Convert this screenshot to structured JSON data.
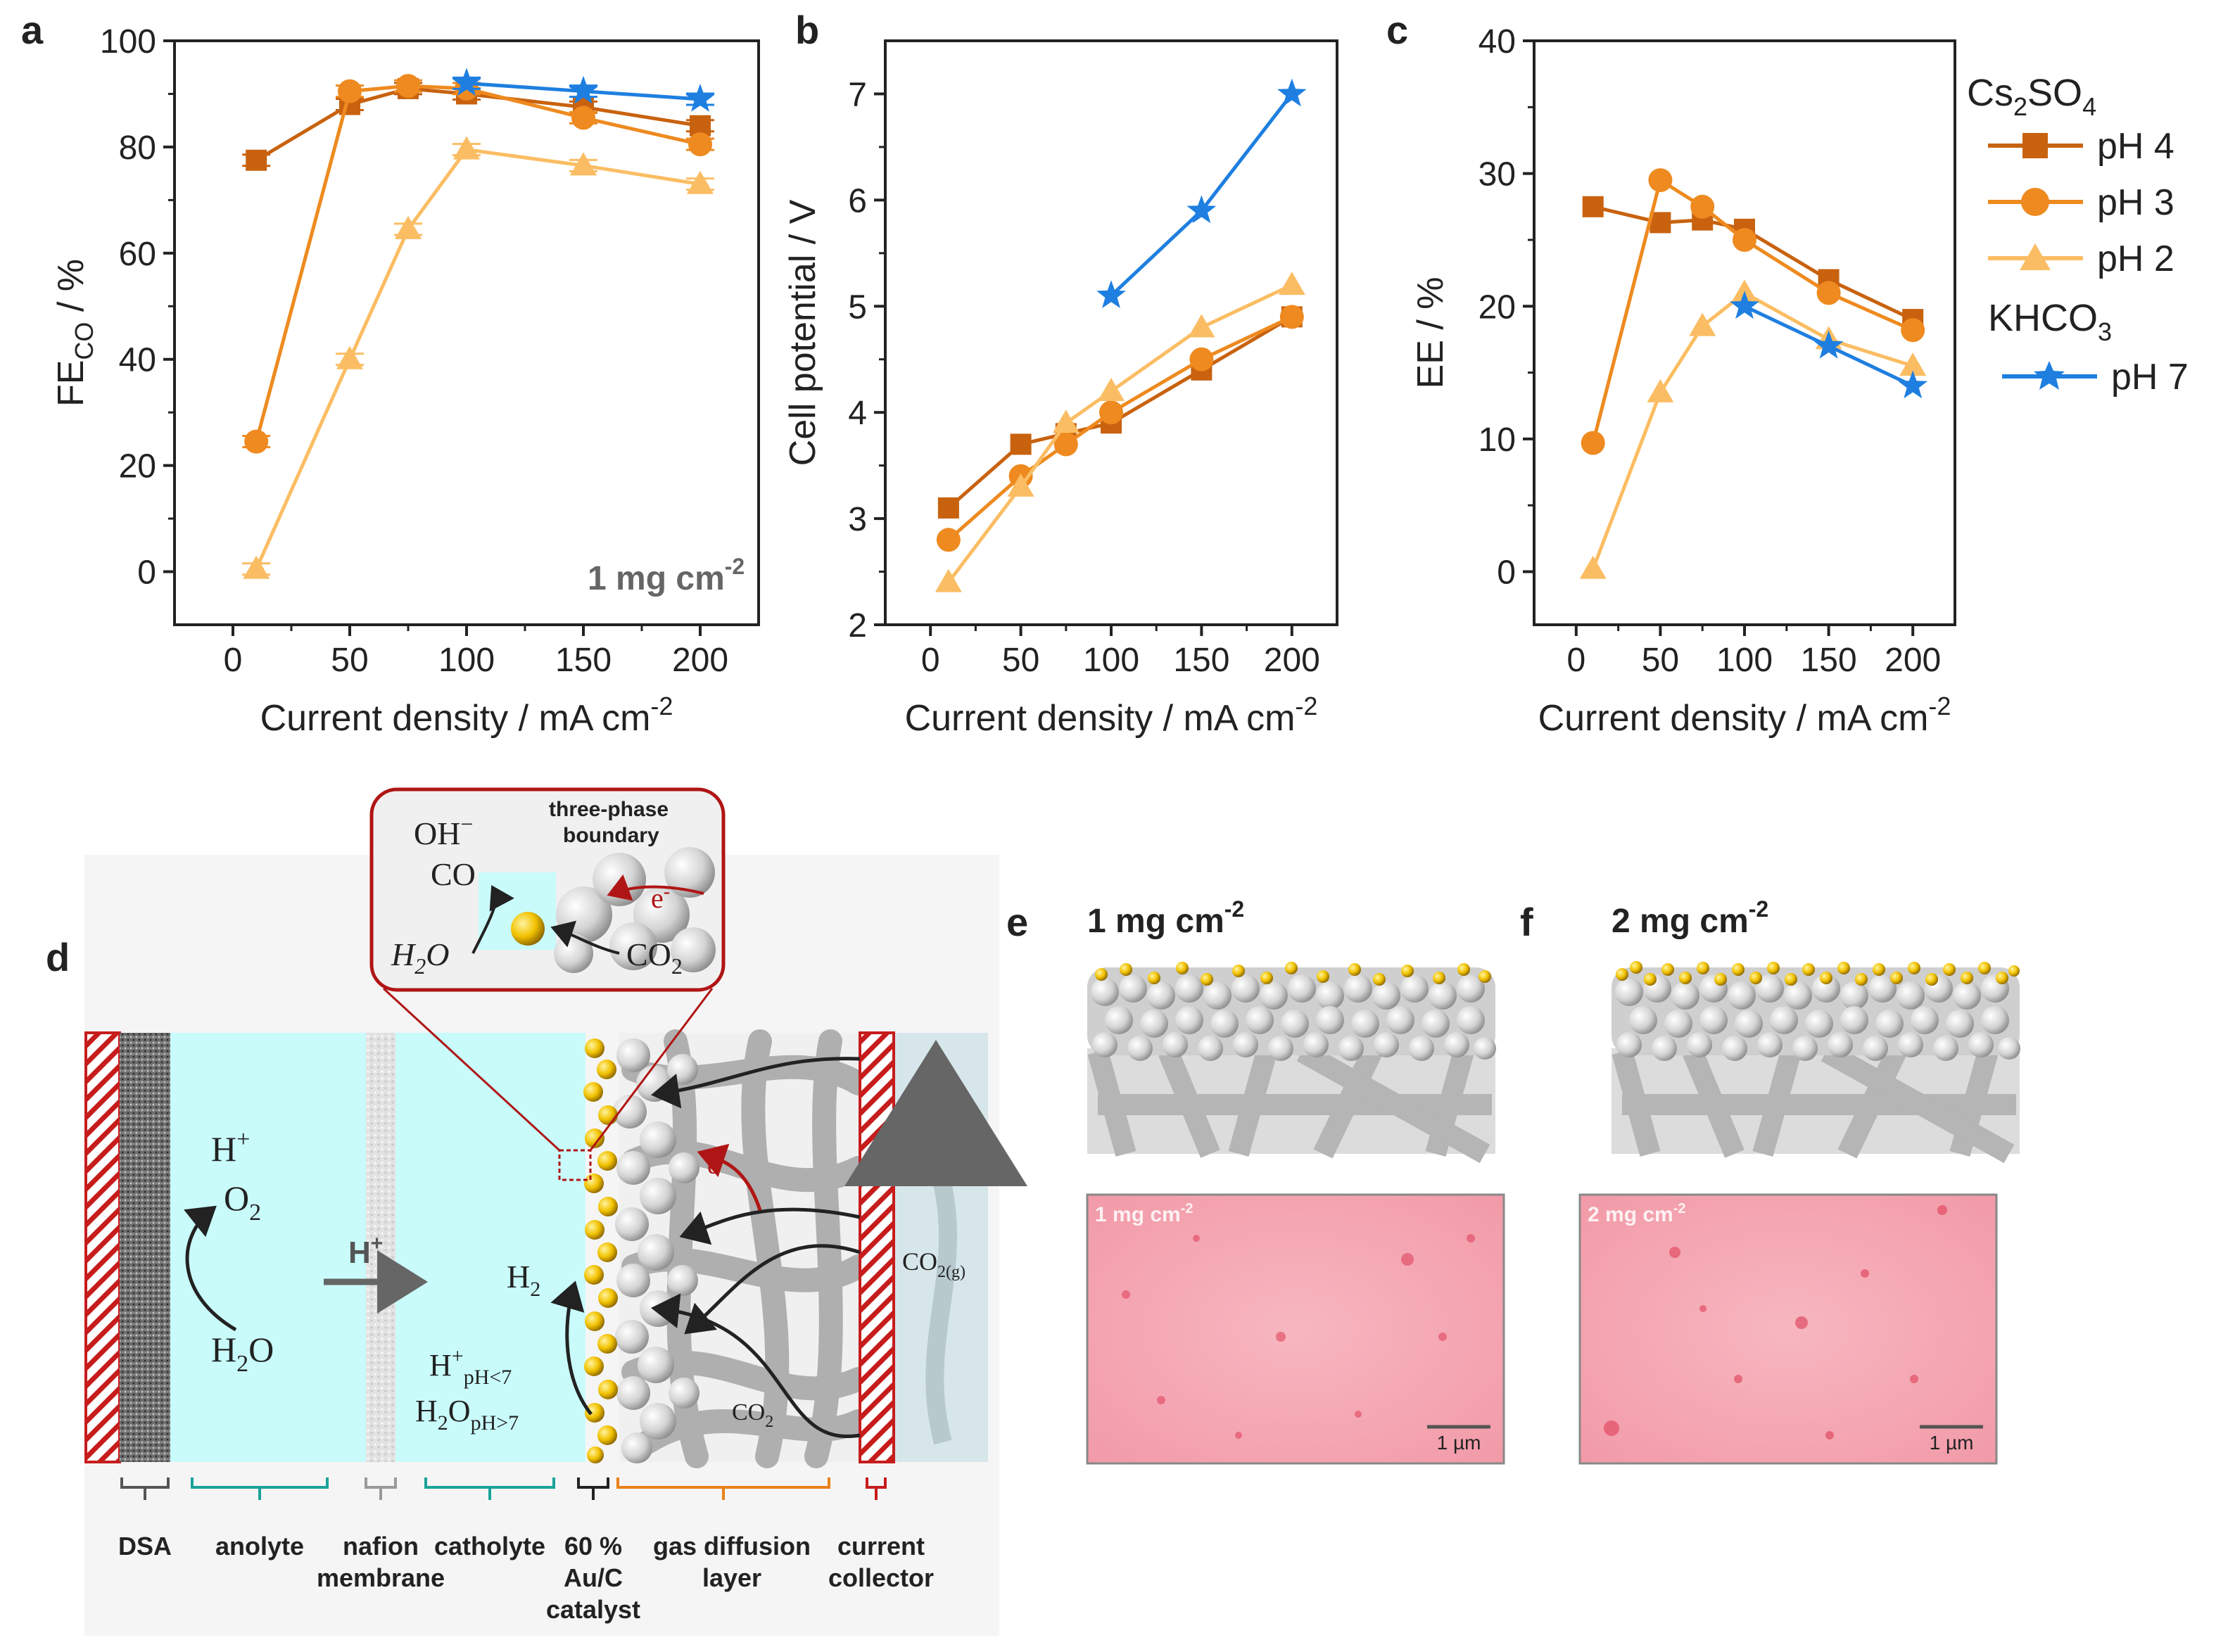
{
  "colors": {
    "ph4": "#c8620f",
    "ph3": "#ee8a1f",
    "ph2": "#fbbd63",
    "ph7": "#1e7fe0",
    "anolyte": "#c9fbfb",
    "collector": "#c61c1c",
    "catalyst": "#f2c200",
    "axis": "#222222"
  },
  "legend": {
    "salt1": "Cs",
    "salt1_sub1": "2",
    "salt1_mid": "SO",
    "salt1_sub2": "4",
    "salt2": "KHCO",
    "salt2_sub": "3",
    "entries": [
      "pH 4",
      "pH 3",
      "pH 2",
      "pH 7"
    ]
  },
  "chart_data": [
    {
      "panel": "a",
      "type": "line",
      "ylabel_main": "FE",
      "ylabel_sub": "CO",
      "ylabel_unit": " / %",
      "xlabel": "Current density / mA cm",
      "xlabel_sup": "-2",
      "xlim": [
        -25,
        225
      ],
      "ylim": [
        -10,
        100
      ],
      "xticks": [
        0,
        50,
        100,
        150,
        200
      ],
      "yticks": [
        0,
        20,
        40,
        60,
        80,
        100
      ],
      "annotation": "1 mg cm",
      "annotation_sup": "-2",
      "series": [
        {
          "name": "pH 4",
          "marker": "square",
          "color_key": "ph4",
          "x": [
            10,
            50,
            75,
            100,
            150,
            200
          ],
          "y": [
            77.5,
            88,
            91,
            90,
            87.5,
            84
          ]
        },
        {
          "name": "pH 3",
          "marker": "circle",
          "color_key": "ph3",
          "x": [
            10,
            50,
            75,
            100,
            150,
            200
          ],
          "y": [
            24.5,
            90.5,
            91.5,
            91,
            85.5,
            80.5
          ]
        },
        {
          "name": "pH 2",
          "marker": "triangle",
          "color_key": "ph2",
          "x": [
            10,
            50,
            75,
            100,
            150,
            200
          ],
          "y": [
            0.5,
            40,
            64.5,
            79.5,
            76.5,
            73
          ]
        },
        {
          "name": "pH 7",
          "marker": "star",
          "color_key": "ph7",
          "x": [
            100,
            150,
            200
          ],
          "y": [
            92,
            90.5,
            89
          ]
        }
      ]
    },
    {
      "panel": "b",
      "type": "line",
      "ylabel": "Cell potential / V",
      "xlabel": "Current density / mA cm",
      "xlabel_sup": "-2",
      "xlim": [
        -25,
        225
      ],
      "ylim": [
        2,
        7.5
      ],
      "xticks": [
        0,
        50,
        100,
        150,
        200
      ],
      "yticks": [
        2,
        3,
        4,
        5,
        6,
        7
      ],
      "series": [
        {
          "name": "pH 4",
          "marker": "square",
          "color_key": "ph4",
          "x": [
            10,
            50,
            75,
            100,
            150,
            200
          ],
          "y": [
            3.1,
            3.7,
            3.8,
            3.9,
            4.4,
            4.9
          ]
        },
        {
          "name": "pH 3",
          "marker": "circle",
          "color_key": "ph3",
          "x": [
            10,
            50,
            75,
            100,
            150,
            200
          ],
          "y": [
            2.8,
            3.4,
            3.7,
            4.0,
            4.5,
            4.9
          ]
        },
        {
          "name": "pH 2",
          "marker": "triangle",
          "color_key": "ph2",
          "x": [
            10,
            50,
            75,
            100,
            150,
            200
          ],
          "y": [
            2.4,
            3.3,
            3.9,
            4.2,
            4.8,
            5.2
          ]
        },
        {
          "name": "pH 7",
          "marker": "star",
          "color_key": "ph7",
          "x": [
            100,
            150,
            200
          ],
          "y": [
            5.1,
            5.9,
            7.0
          ]
        }
      ]
    },
    {
      "panel": "c",
      "type": "line",
      "ylabel": "EE / %",
      "xlabel": "Current density / mA cm",
      "xlabel_sup": "-2",
      "xlim": [
        -25,
        225
      ],
      "ylim": [
        -4,
        40
      ],
      "xticks": [
        0,
        50,
        100,
        150,
        200
      ],
      "yticks": [
        0,
        10,
        20,
        30,
        40
      ],
      "series": [
        {
          "name": "pH 4",
          "marker": "square",
          "color_key": "ph4",
          "x": [
            10,
            50,
            75,
            100,
            150,
            200
          ],
          "y": [
            27.5,
            26.3,
            26.5,
            25.8,
            22.0,
            19.0
          ]
        },
        {
          "name": "pH 3",
          "marker": "circle",
          "color_key": "ph3",
          "x": [
            10,
            50,
            75,
            100,
            150,
            200
          ],
          "y": [
            9.7,
            29.5,
            27.5,
            25.0,
            21.0,
            18.2
          ]
        },
        {
          "name": "pH 2",
          "marker": "triangle",
          "color_key": "ph2",
          "x": [
            10,
            50,
            75,
            100,
            150,
            200
          ],
          "y": [
            0.2,
            13.5,
            18.5,
            21.0,
            17.5,
            15.5
          ]
        },
        {
          "name": "pH 7",
          "marker": "star",
          "color_key": "ph7",
          "x": [
            100,
            150,
            200
          ],
          "y": [
            20.0,
            17.0,
            14.0
          ]
        }
      ]
    }
  ],
  "panel_letters": [
    "a",
    "b",
    "c",
    "d",
    "e",
    "f"
  ],
  "schematic": {
    "inset_title_1": "three-phase",
    "inset_title_2": "boundary",
    "inset_oh": "OH",
    "inset_oh_sup": "−",
    "inset_co": "CO",
    "inset_h2o": "H",
    "inset_h2o_sub": "2",
    "inset_h2o_end": "O",
    "inset_co2": "CO",
    "inset_co2_sub": "2",
    "inset_e": "e",
    "inset_e_sup": "-",
    "hplus": "H",
    "hplus_sup": "+",
    "o2": "O",
    "o2_sub": "2",
    "h2o": "H",
    "h2o_sub": "2",
    "h2o_end": "O",
    "arrow_h": "H",
    "arrow_h_sup": "+",
    "h2": "H",
    "h2_sub": "2",
    "hph": "H",
    "hph_sup": "+",
    "hph_sub": "pH<7",
    "h2oph": "H",
    "h2oph_sub1": "2",
    "h2oph_mid": "O",
    "h2oph_sub2": "pH>7",
    "e_label": "e",
    "e_label_sup": "-",
    "co2_bottom": "CO",
    "co2_bottom_sub": "2",
    "co2g": "CO",
    "co2g_sub": "2(g)",
    "labels": {
      "dsa": "DSA",
      "anolyte": "anolyte",
      "nafion_1": "nafion",
      "nafion_2": "membrane",
      "catholyte": "catholyte",
      "catalyst_1": "60 %",
      "catalyst_2": "Au/C",
      "catalyst_3": "catalyst",
      "gdl_1": "gas diffusion",
      "gdl_2": "layer",
      "cc_1": "current",
      "cc_2": "collector"
    }
  },
  "micro": {
    "e_title": "1 mg cm",
    "e_title_sup": "-2",
    "f_title": "2 mg cm",
    "f_title_sup": "-2",
    "e_map_label": "1 mg cm",
    "e_map_label_sup": "-2",
    "f_map_label": "2 mg cm",
    "f_map_label_sup": "-2",
    "scalebar": "1 µm"
  }
}
